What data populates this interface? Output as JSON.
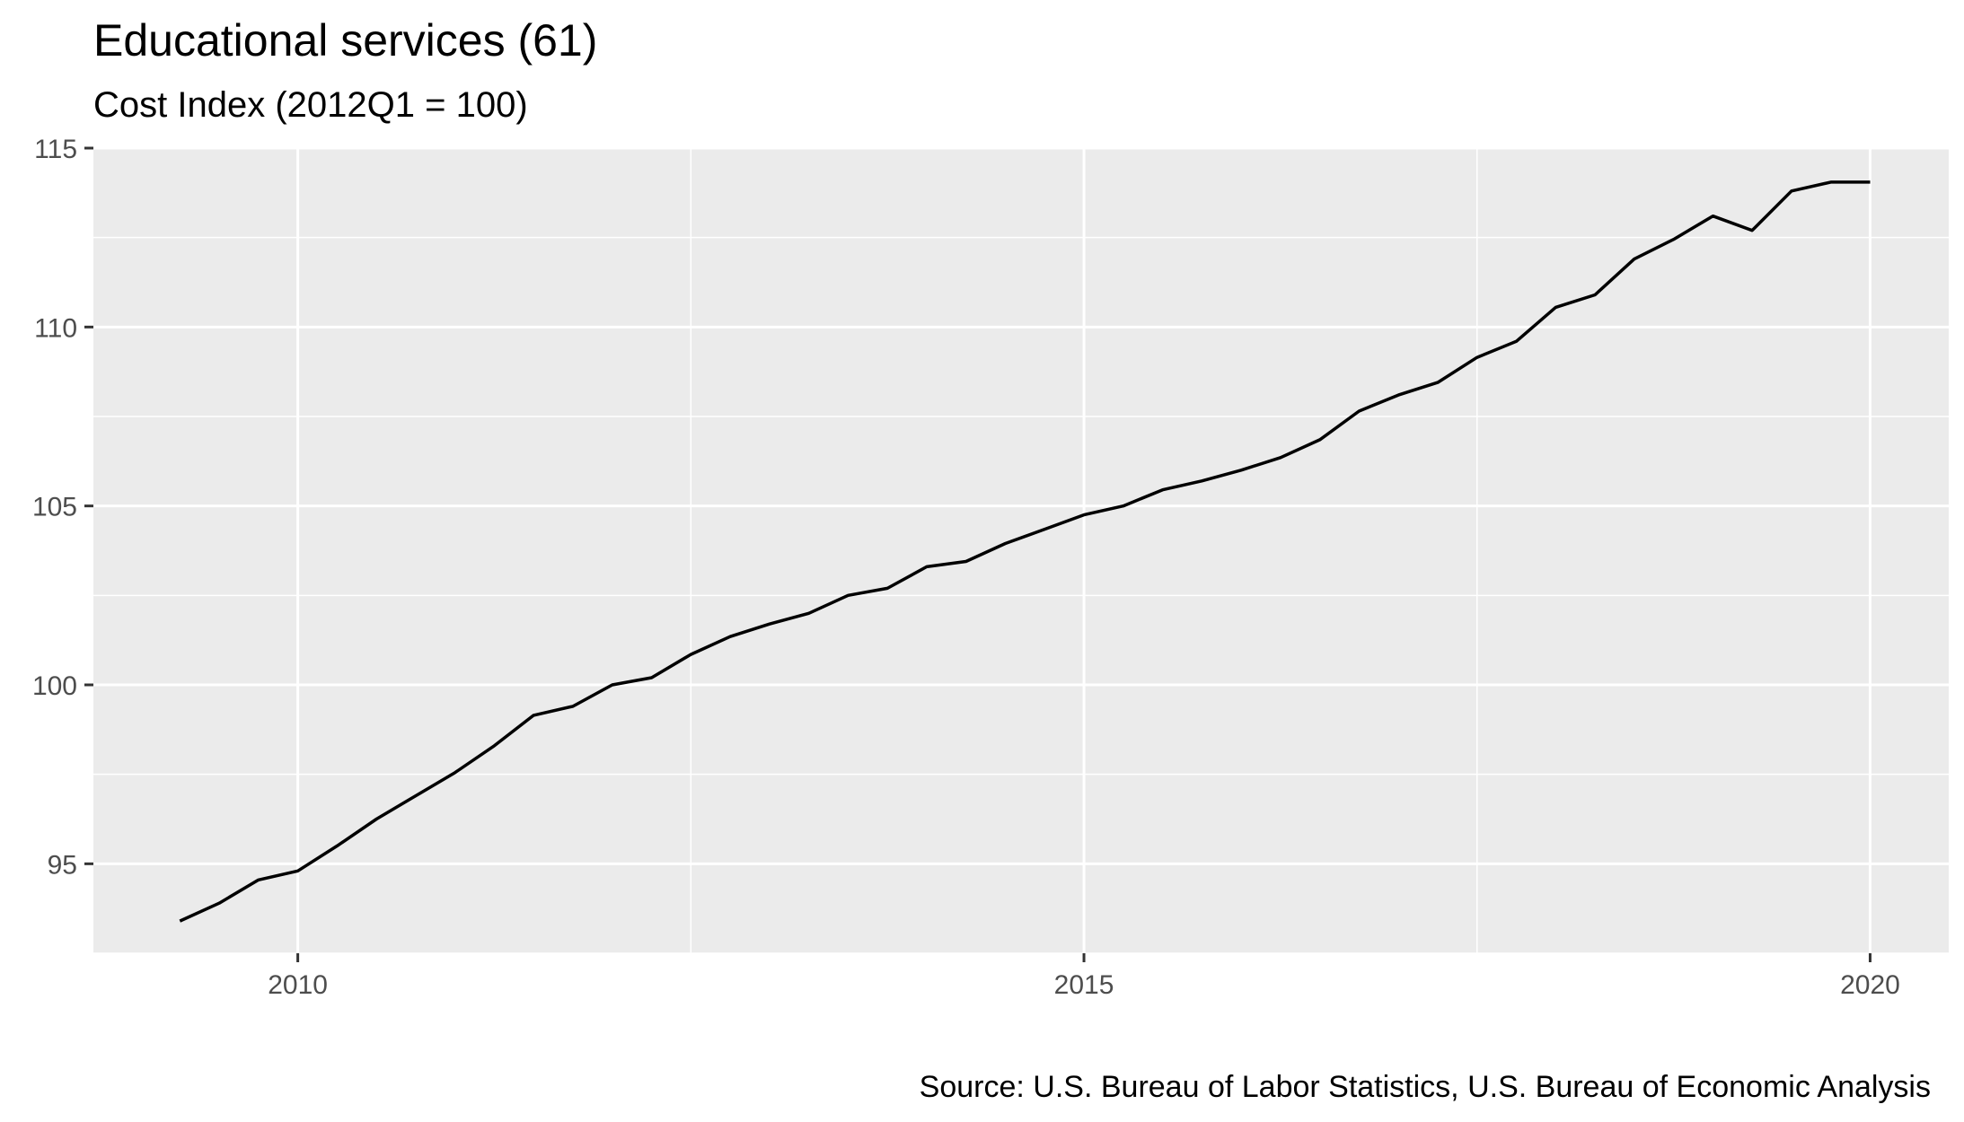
{
  "chart_data": {
    "type": "line",
    "title": "Educational services (61)",
    "subtitle": "Cost Index (2012Q1 = 100)",
    "caption": "Source: U.S. Bureau of Labor Statistics, U.S. Bureau of Economic Analysis",
    "xlabel": "",
    "ylabel": "",
    "xlim": [
      2008.7,
      2020.5
    ],
    "ylim": [
      92.5,
      115
    ],
    "x_ticks": [
      2010,
      2015,
      2020
    ],
    "x_tick_labels": [
      "2010",
      "2015",
      "2020"
    ],
    "y_ticks": [
      95,
      100,
      105,
      110,
      115
    ],
    "y_tick_labels": [
      "95",
      "100",
      "105",
      "110",
      "115"
    ],
    "grid": true,
    "colors": {
      "panel": "#ebebeb",
      "grid": "#ffffff",
      "line": "#000000",
      "ticks": "#333333"
    },
    "series": [
      {
        "x": [
          2009.25,
          2009.5,
          2009.75,
          2010.0,
          2010.25,
          2010.5,
          2010.75,
          2011.0,
          2011.25,
          2011.5,
          2011.75,
          2012.0,
          2012.25,
          2012.5,
          2012.75,
          2013.0,
          2013.25,
          2013.5,
          2013.75,
          2014.0,
          2014.25,
          2014.5,
          2014.75,
          2015.0,
          2015.25,
          2015.5,
          2015.75,
          2016.0,
          2016.25,
          2016.5,
          2016.75,
          2017.0,
          2017.25,
          2017.5,
          2017.75,
          2018.0,
          2018.25,
          2018.5,
          2018.75,
          2019.0,
          2019.25,
          2019.5,
          2019.75,
          2020.0
        ],
        "values": [
          93.4,
          93.9,
          94.55,
          94.8,
          95.5,
          96.25,
          96.9,
          97.55,
          98.3,
          99.15,
          99.4,
          100.0,
          100.2,
          100.85,
          101.35,
          101.7,
          102.0,
          102.5,
          102.7,
          103.3,
          103.45,
          103.95,
          104.35,
          104.75,
          105.0,
          105.45,
          105.7,
          106.0,
          106.35,
          106.85,
          107.65,
          108.1,
          108.45,
          109.15,
          109.6,
          110.55,
          110.9,
          111.9,
          112.45,
          113.1,
          112.7,
          113.8,
          114.05,
          114.05
        ]
      }
    ]
  }
}
